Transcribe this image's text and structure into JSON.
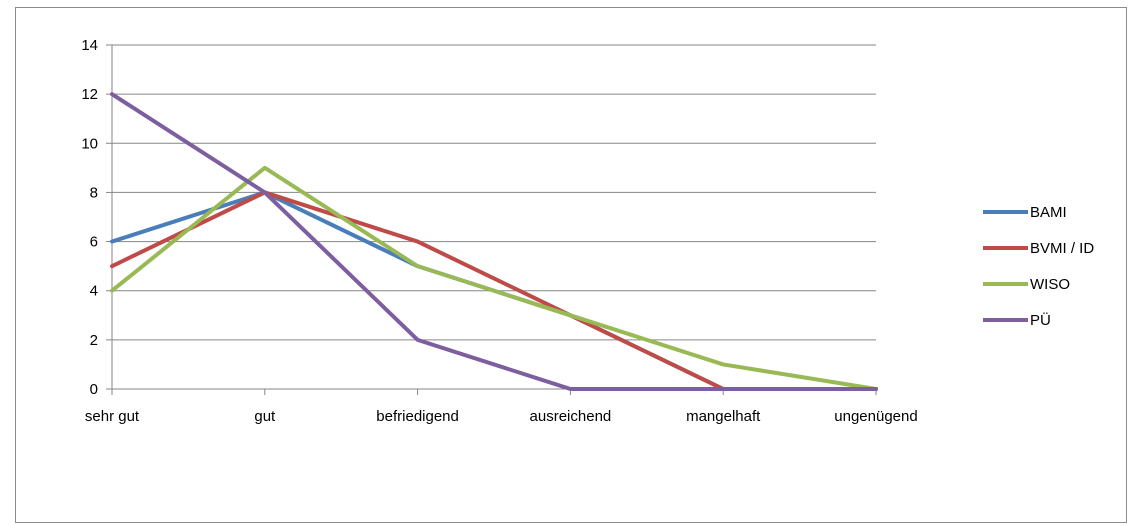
{
  "chart_data": {
    "type": "line",
    "categories": [
      "sehr gut",
      "gut",
      "befriedigend",
      "ausreichend",
      "mangelhaft",
      "ungenügend"
    ],
    "series": [
      {
        "name": "BAMI",
        "color": "#4a7ebb",
        "values": [
          6,
          8,
          5,
          3,
          0,
          0
        ]
      },
      {
        "name": "BVMI / ID",
        "color": "#be4b48",
        "values": [
          5,
          8,
          6,
          3,
          0,
          0
        ]
      },
      {
        "name": "WISO",
        "color": "#98b954",
        "values": [
          4,
          9,
          5,
          3,
          1,
          0
        ]
      },
      {
        "name": "PÜ",
        "color": "#7d5fa0",
        "values": [
          12,
          8,
          2,
          0,
          0,
          0
        ]
      }
    ],
    "yticks": [
      "0",
      "2",
      "4",
      "6",
      "8",
      "10",
      "12",
      "14"
    ],
    "ylim": [
      0,
      14
    ],
    "grid": true,
    "legend": "right",
    "title": "",
    "xlabel": "",
    "ylabel": ""
  }
}
